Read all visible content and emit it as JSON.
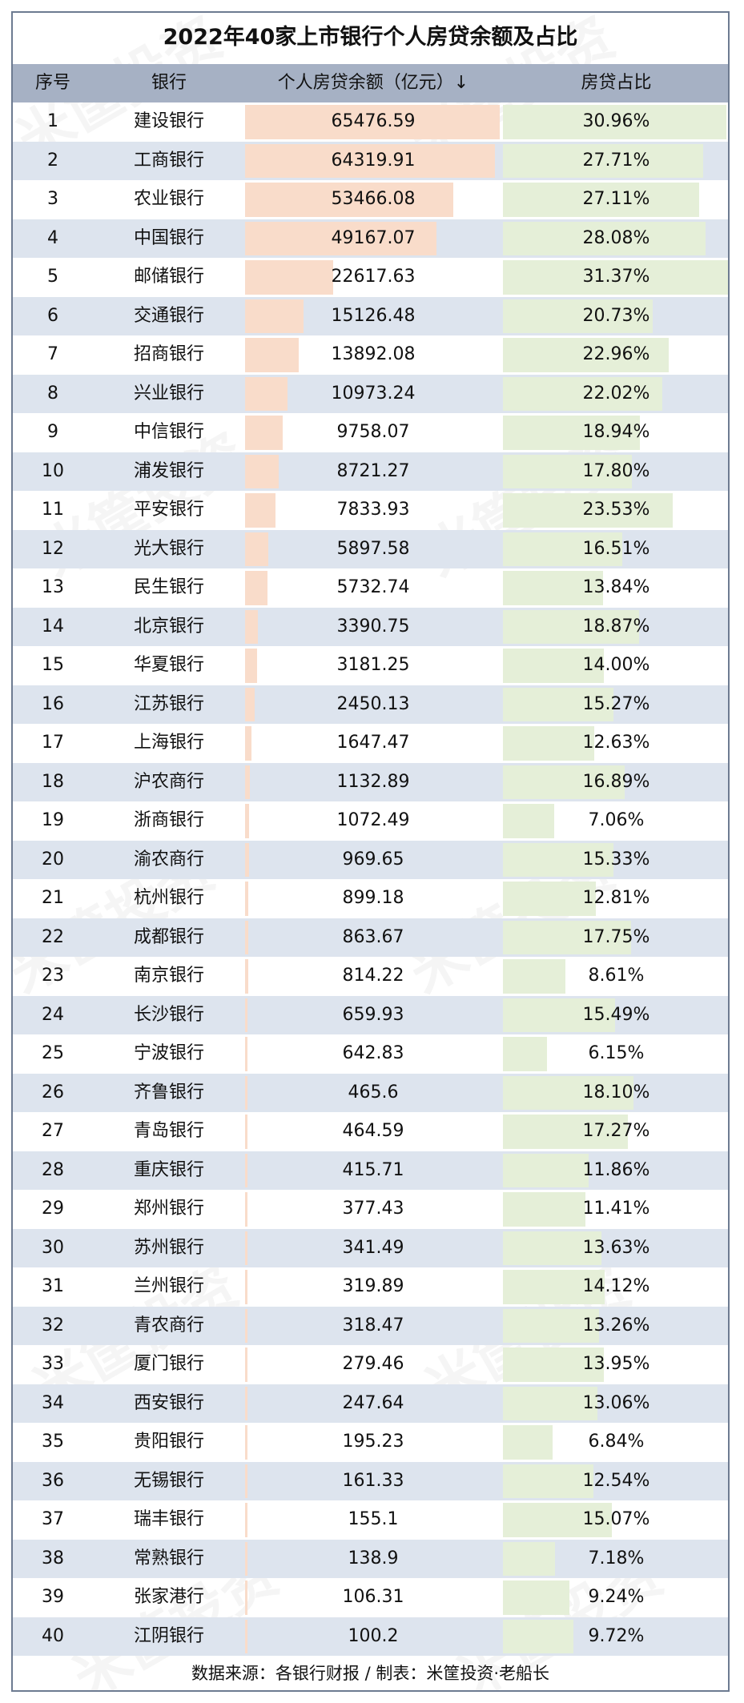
{
  "title": "2022年40家上市银行个人房贷余额及占比",
  "headers": {
    "rank": "序号",
    "bank": "银行",
    "balance": "个人房贷余额（亿元）↓",
    "share": "房贷占比"
  },
  "footer": "数据来源：各银行财报 / 制表：米筐投资·老船长",
  "watermark": "米筐投资",
  "colors": {
    "header_bg": "#a6b1c4",
    "alt_row": "#dde4ee",
    "balance_bar": "#f9dcca",
    "share_bar": "#e5efd8",
    "border": "#6d7b91"
  },
  "chart_data": {
    "type": "table",
    "title": "2022年40家上市银行个人房贷余额及占比",
    "columns": [
      "序号",
      "银行",
      "个人房贷余额（亿元）↓",
      "房贷占比"
    ],
    "rows": [
      {
        "rank": "1",
        "bank": "建设银行",
        "balance": 65476.59,
        "balance_text": "65476.59",
        "share": 30.96,
        "share_text": "30.96%"
      },
      {
        "rank": "2",
        "bank": "工商银行",
        "balance": 64319.91,
        "balance_text": "64319.91",
        "share": 27.71,
        "share_text": "27.71%"
      },
      {
        "rank": "3",
        "bank": "农业银行",
        "balance": 53466.08,
        "balance_text": "53466.08",
        "share": 27.11,
        "share_text": "27.11%"
      },
      {
        "rank": "4",
        "bank": "中国银行",
        "balance": 49167.07,
        "balance_text": "49167.07",
        "share": 28.08,
        "share_text": "28.08%"
      },
      {
        "rank": "5",
        "bank": "邮储银行",
        "balance": 22617.63,
        "balance_text": "22617.63",
        "share": 31.37,
        "share_text": "31.37%"
      },
      {
        "rank": "6",
        "bank": "交通银行",
        "balance": 15126.48,
        "balance_text": "15126.48",
        "share": 20.73,
        "share_text": "20.73%"
      },
      {
        "rank": "7",
        "bank": "招商银行",
        "balance": 13892.08,
        "balance_text": "13892.08",
        "share": 22.96,
        "share_text": "22.96%"
      },
      {
        "rank": "8",
        "bank": "兴业银行",
        "balance": 10973.24,
        "balance_text": "10973.24",
        "share": 22.02,
        "share_text": "22.02%"
      },
      {
        "rank": "9",
        "bank": "中信银行",
        "balance": 9758.07,
        "balance_text": "9758.07",
        "share": 18.94,
        "share_text": "18.94%"
      },
      {
        "rank": "10",
        "bank": "浦发银行",
        "balance": 8721.27,
        "balance_text": "8721.27",
        "share": 17.8,
        "share_text": "17.80%"
      },
      {
        "rank": "11",
        "bank": "平安银行",
        "balance": 7833.93,
        "balance_text": "7833.93",
        "share": 23.53,
        "share_text": "23.53%"
      },
      {
        "rank": "12",
        "bank": "光大银行",
        "balance": 5897.58,
        "balance_text": "5897.58",
        "share": 16.51,
        "share_text": "16.51%"
      },
      {
        "rank": "13",
        "bank": "民生银行",
        "balance": 5732.74,
        "balance_text": "5732.74",
        "share": 13.84,
        "share_text": "13.84%"
      },
      {
        "rank": "14",
        "bank": "北京银行",
        "balance": 3390.75,
        "balance_text": "3390.75",
        "share": 18.87,
        "share_text": "18.87%"
      },
      {
        "rank": "15",
        "bank": "华夏银行",
        "balance": 3181.25,
        "balance_text": "3181.25",
        "share": 14.0,
        "share_text": "14.00%"
      },
      {
        "rank": "16",
        "bank": "江苏银行",
        "balance": 2450.13,
        "balance_text": "2450.13",
        "share": 15.27,
        "share_text": "15.27%"
      },
      {
        "rank": "17",
        "bank": "上海银行",
        "balance": 1647.47,
        "balance_text": "1647.47",
        "share": 12.63,
        "share_text": "12.63%"
      },
      {
        "rank": "18",
        "bank": "沪农商行",
        "balance": 1132.89,
        "balance_text": "1132.89",
        "share": 16.89,
        "share_text": "16.89%"
      },
      {
        "rank": "19",
        "bank": "浙商银行",
        "balance": 1072.49,
        "balance_text": "1072.49",
        "share": 7.06,
        "share_text": "7.06%"
      },
      {
        "rank": "20",
        "bank": "渝农商行",
        "balance": 969.65,
        "balance_text": "969.65",
        "share": 15.33,
        "share_text": "15.33%"
      },
      {
        "rank": "21",
        "bank": "杭州银行",
        "balance": 899.18,
        "balance_text": "899.18",
        "share": 12.81,
        "share_text": "12.81%"
      },
      {
        "rank": "22",
        "bank": "成都银行",
        "balance": 863.67,
        "balance_text": "863.67",
        "share": 17.75,
        "share_text": "17.75%"
      },
      {
        "rank": "23",
        "bank": "南京银行",
        "balance": 814.22,
        "balance_text": "814.22",
        "share": 8.61,
        "share_text": "8.61%"
      },
      {
        "rank": "24",
        "bank": "长沙银行",
        "balance": 659.93,
        "balance_text": "659.93",
        "share": 15.49,
        "share_text": "15.49%"
      },
      {
        "rank": "25",
        "bank": "宁波银行",
        "balance": 642.83,
        "balance_text": "642.83",
        "share": 6.15,
        "share_text": "6.15%"
      },
      {
        "rank": "26",
        "bank": "齐鲁银行",
        "balance": 465.6,
        "balance_text": "465.6",
        "share": 18.1,
        "share_text": "18.10%"
      },
      {
        "rank": "27",
        "bank": "青岛银行",
        "balance": 464.59,
        "balance_text": "464.59",
        "share": 17.27,
        "share_text": "17.27%"
      },
      {
        "rank": "28",
        "bank": "重庆银行",
        "balance": 415.71,
        "balance_text": "415.71",
        "share": 11.86,
        "share_text": "11.86%"
      },
      {
        "rank": "29",
        "bank": "郑州银行",
        "balance": 377.43,
        "balance_text": "377.43",
        "share": 11.41,
        "share_text": "11.41%"
      },
      {
        "rank": "30",
        "bank": "苏州银行",
        "balance": 341.49,
        "balance_text": "341.49",
        "share": 13.63,
        "share_text": "13.63%"
      },
      {
        "rank": "31",
        "bank": "兰州银行",
        "balance": 319.89,
        "balance_text": "319.89",
        "share": 14.12,
        "share_text": "14.12%"
      },
      {
        "rank": "32",
        "bank": "青农商行",
        "balance": 318.47,
        "balance_text": "318.47",
        "share": 13.26,
        "share_text": "13.26%"
      },
      {
        "rank": "33",
        "bank": "厦门银行",
        "balance": 279.46,
        "balance_text": "279.46",
        "share": 13.95,
        "share_text": "13.95%"
      },
      {
        "rank": "34",
        "bank": "西安银行",
        "balance": 247.64,
        "balance_text": "247.64",
        "share": 13.06,
        "share_text": "13.06%"
      },
      {
        "rank": "35",
        "bank": "贵阳银行",
        "balance": 195.23,
        "balance_text": "195.23",
        "share": 6.84,
        "share_text": "6.84%"
      },
      {
        "rank": "36",
        "bank": "无锡银行",
        "balance": 161.33,
        "balance_text": "161.33",
        "share": 12.54,
        "share_text": "12.54%"
      },
      {
        "rank": "37",
        "bank": "瑞丰银行",
        "balance": 155.1,
        "balance_text": "155.1",
        "share": 15.07,
        "share_text": "15.07%"
      },
      {
        "rank": "38",
        "bank": "常熟银行",
        "balance": 138.9,
        "balance_text": "138.9",
        "share": 7.18,
        "share_text": "7.18%"
      },
      {
        "rank": "39",
        "bank": "张家港行",
        "balance": 106.31,
        "balance_text": "106.31",
        "share": 9.24,
        "share_text": "9.24%"
      },
      {
        "rank": "40",
        "bank": "江阴银行",
        "balance": 100.2,
        "balance_text": "100.2",
        "share": 9.72,
        "share_text": "9.72%"
      }
    ]
  }
}
